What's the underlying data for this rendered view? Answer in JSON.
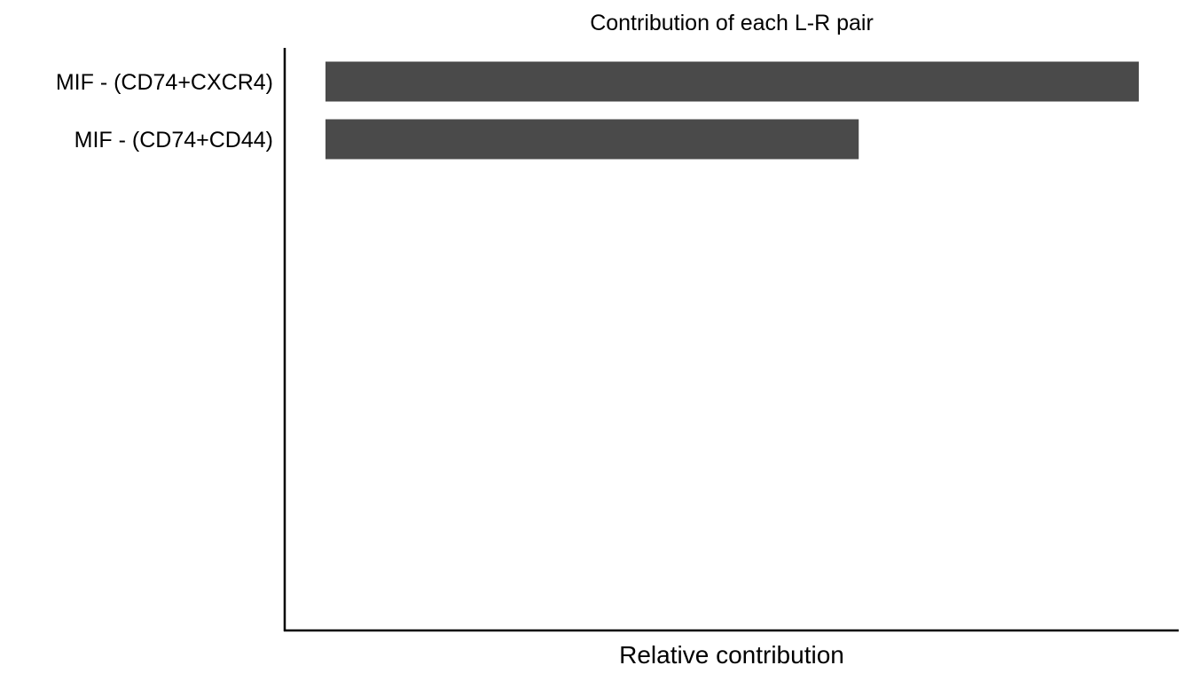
{
  "chart_data": {
    "type": "bar",
    "orientation": "horizontal",
    "title": "Contribution of each L-R pair",
    "xlabel": "Relative contribution",
    "ylabel": "",
    "categories": [
      "MIF - (CD74+CXCR4)",
      "MIF - (CD74+CD44)"
    ],
    "values": [
      0.604,
      0.396
    ],
    "xlim": [
      0,
      0.62
    ],
    "x_tick_labels": "none",
    "grid": false,
    "legend": "none",
    "bar_color": "#4a4a4a"
  }
}
